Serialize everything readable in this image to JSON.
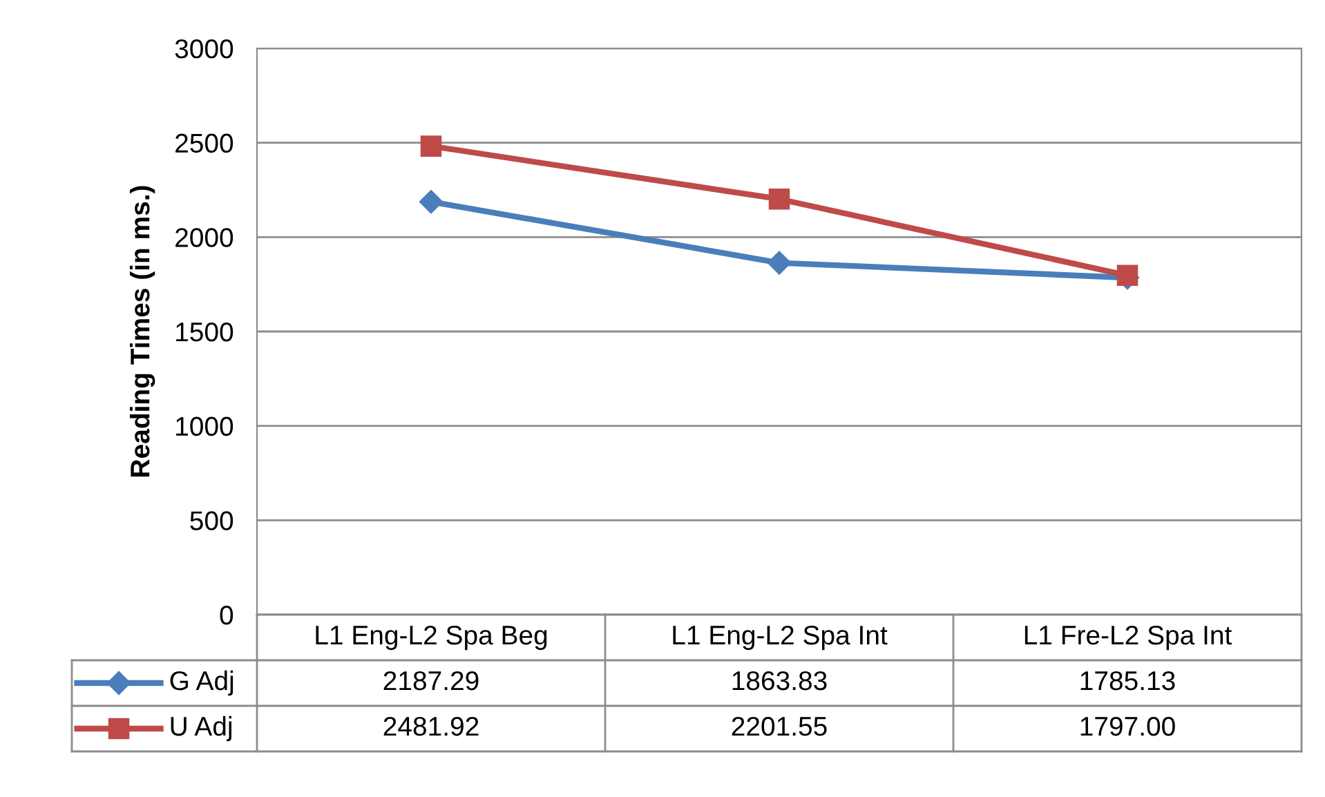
{
  "chart_data": {
    "type": "line",
    "ylabel": "Reading Times (in ms.)",
    "categories": [
      "L1 Eng-L2 Spa Beg",
      "L1 Eng-L2 Spa Int",
      "L1 Fre-L2 Spa Int"
    ],
    "series": [
      {
        "name": "G Adj",
        "color": "#4a7ebb",
        "marker": "diamond",
        "values": [
          2187.29,
          1863.83,
          1785.13
        ],
        "value_labels": [
          "2187.29",
          "1863.83",
          "1785.13"
        ]
      },
      {
        "name": "U Adj",
        "color": "#be4b48",
        "marker": "square",
        "values": [
          2481.92,
          2201.55,
          1797.0
        ],
        "value_labels": [
          "2481.92",
          "2201.55",
          "1797.00"
        ]
      }
    ],
    "ylim": [
      0,
      3000
    ],
    "yticks": [
      0,
      500,
      1000,
      1500,
      2000,
      2500,
      3000
    ],
    "grid": "y",
    "legend": "bottom",
    "line_style": "solid"
  }
}
